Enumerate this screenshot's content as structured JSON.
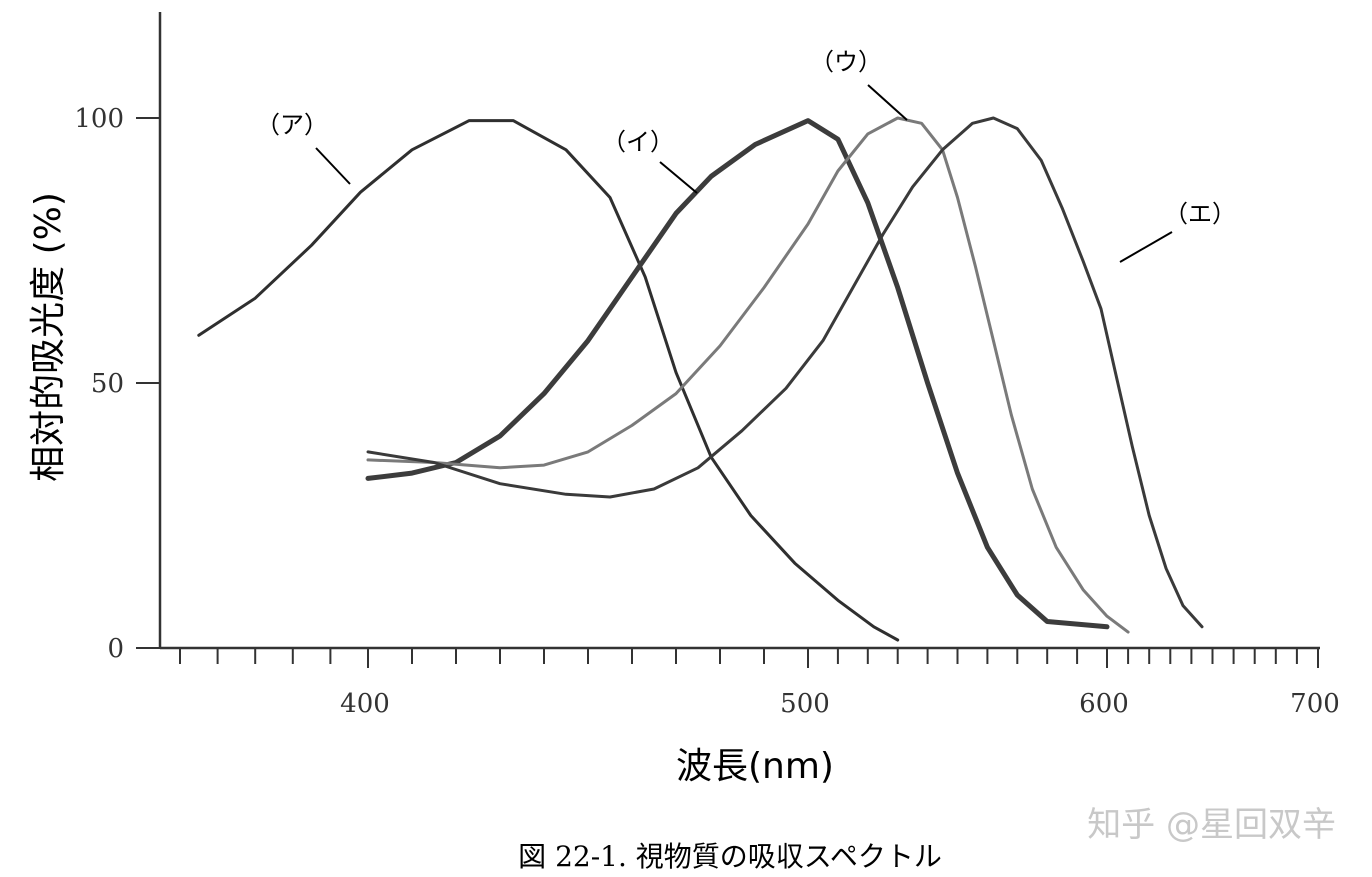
{
  "chart_data": {
    "type": "line",
    "xlabel": "波長(nm)",
    "ylabel": "相対的吸光度 (%)",
    "xlim": [
      350,
      700
    ],
    "ylim": [
      0,
      120
    ],
    "x_ticks": [
      400,
      500,
      600,
      700
    ],
    "y_ticks": [
      0,
      50,
      100
    ],
    "grid": false,
    "series": [
      {
        "name": "（ア）",
        "color": "#2f2f2f",
        "points": [
          [
            355,
            59
          ],
          [
            370,
            66
          ],
          [
            385,
            76
          ],
          [
            398,
            86
          ],
          [
            410,
            94
          ],
          [
            423,
            99.5
          ],
          [
            433,
            99.5
          ],
          [
            445,
            94
          ],
          [
            455,
            85
          ],
          [
            463,
            70
          ],
          [
            470,
            52
          ],
          [
            478,
            36
          ],
          [
            487,
            25
          ],
          [
            497,
            16
          ],
          [
            510,
            9
          ],
          [
            522,
            4
          ],
          [
            530,
            1.5
          ]
        ]
      },
      {
        "name": "（イ）",
        "color": "#3c3c3c",
        "points": [
          [
            400,
            32
          ],
          [
            410,
            33
          ],
          [
            420,
            35
          ],
          [
            430,
            40
          ],
          [
            440,
            48
          ],
          [
            450,
            58
          ],
          [
            460,
            70
          ],
          [
            470,
            82
          ],
          [
            478,
            89
          ],
          [
            488,
            95
          ],
          [
            500,
            99.5
          ],
          [
            510,
            96
          ],
          [
            520,
            84
          ],
          [
            530,
            68
          ],
          [
            540,
            50
          ],
          [
            550,
            33
          ],
          [
            560,
            19
          ],
          [
            570,
            10
          ],
          [
            580,
            5
          ],
          [
            600,
            4
          ]
        ]
      },
      {
        "name": "（ウ）",
        "color": "#7a7a7a",
        "points": [
          [
            400,
            35.5
          ],
          [
            415,
            35
          ],
          [
            430,
            34
          ],
          [
            440,
            34.5
          ],
          [
            450,
            37
          ],
          [
            460,
            42
          ],
          [
            470,
            48
          ],
          [
            480,
            57
          ],
          [
            490,
            68
          ],
          [
            500,
            80
          ],
          [
            510,
            90
          ],
          [
            520,
            97
          ],
          [
            530,
            100
          ],
          [
            538,
            99
          ],
          [
            545,
            94
          ],
          [
            550,
            85
          ],
          [
            556,
            72
          ],
          [
            562,
            58
          ],
          [
            568,
            44
          ],
          [
            575,
            30
          ],
          [
            583,
            19
          ],
          [
            592,
            11
          ],
          [
            600,
            6
          ],
          [
            610,
            3
          ]
        ]
      },
      {
        "name": "（エ）",
        "color": "#3a3a3a",
        "points": [
          [
            400,
            37
          ],
          [
            415,
            35
          ],
          [
            430,
            31
          ],
          [
            445,
            29
          ],
          [
            455,
            28.5
          ],
          [
            465,
            30
          ],
          [
            475,
            34
          ],
          [
            485,
            41
          ],
          [
            495,
            49
          ],
          [
            505,
            58
          ],
          [
            515,
            68
          ],
          [
            525,
            78
          ],
          [
            535,
            87
          ],
          [
            545,
            94
          ],
          [
            555,
            99
          ],
          [
            562,
            100
          ],
          [
            570,
            98
          ],
          [
            578,
            92
          ],
          [
            585,
            83
          ],
          [
            592,
            73
          ],
          [
            598,
            64
          ],
          [
            604,
            52
          ],
          [
            612,
            38
          ],
          [
            620,
            25
          ],
          [
            628,
            15
          ],
          [
            636,
            8
          ],
          [
            645,
            4
          ]
        ]
      }
    ]
  },
  "watermark": "知乎 @星回双辛",
  "caption": "図 22-1. 視物質の吸収スペクトル"
}
